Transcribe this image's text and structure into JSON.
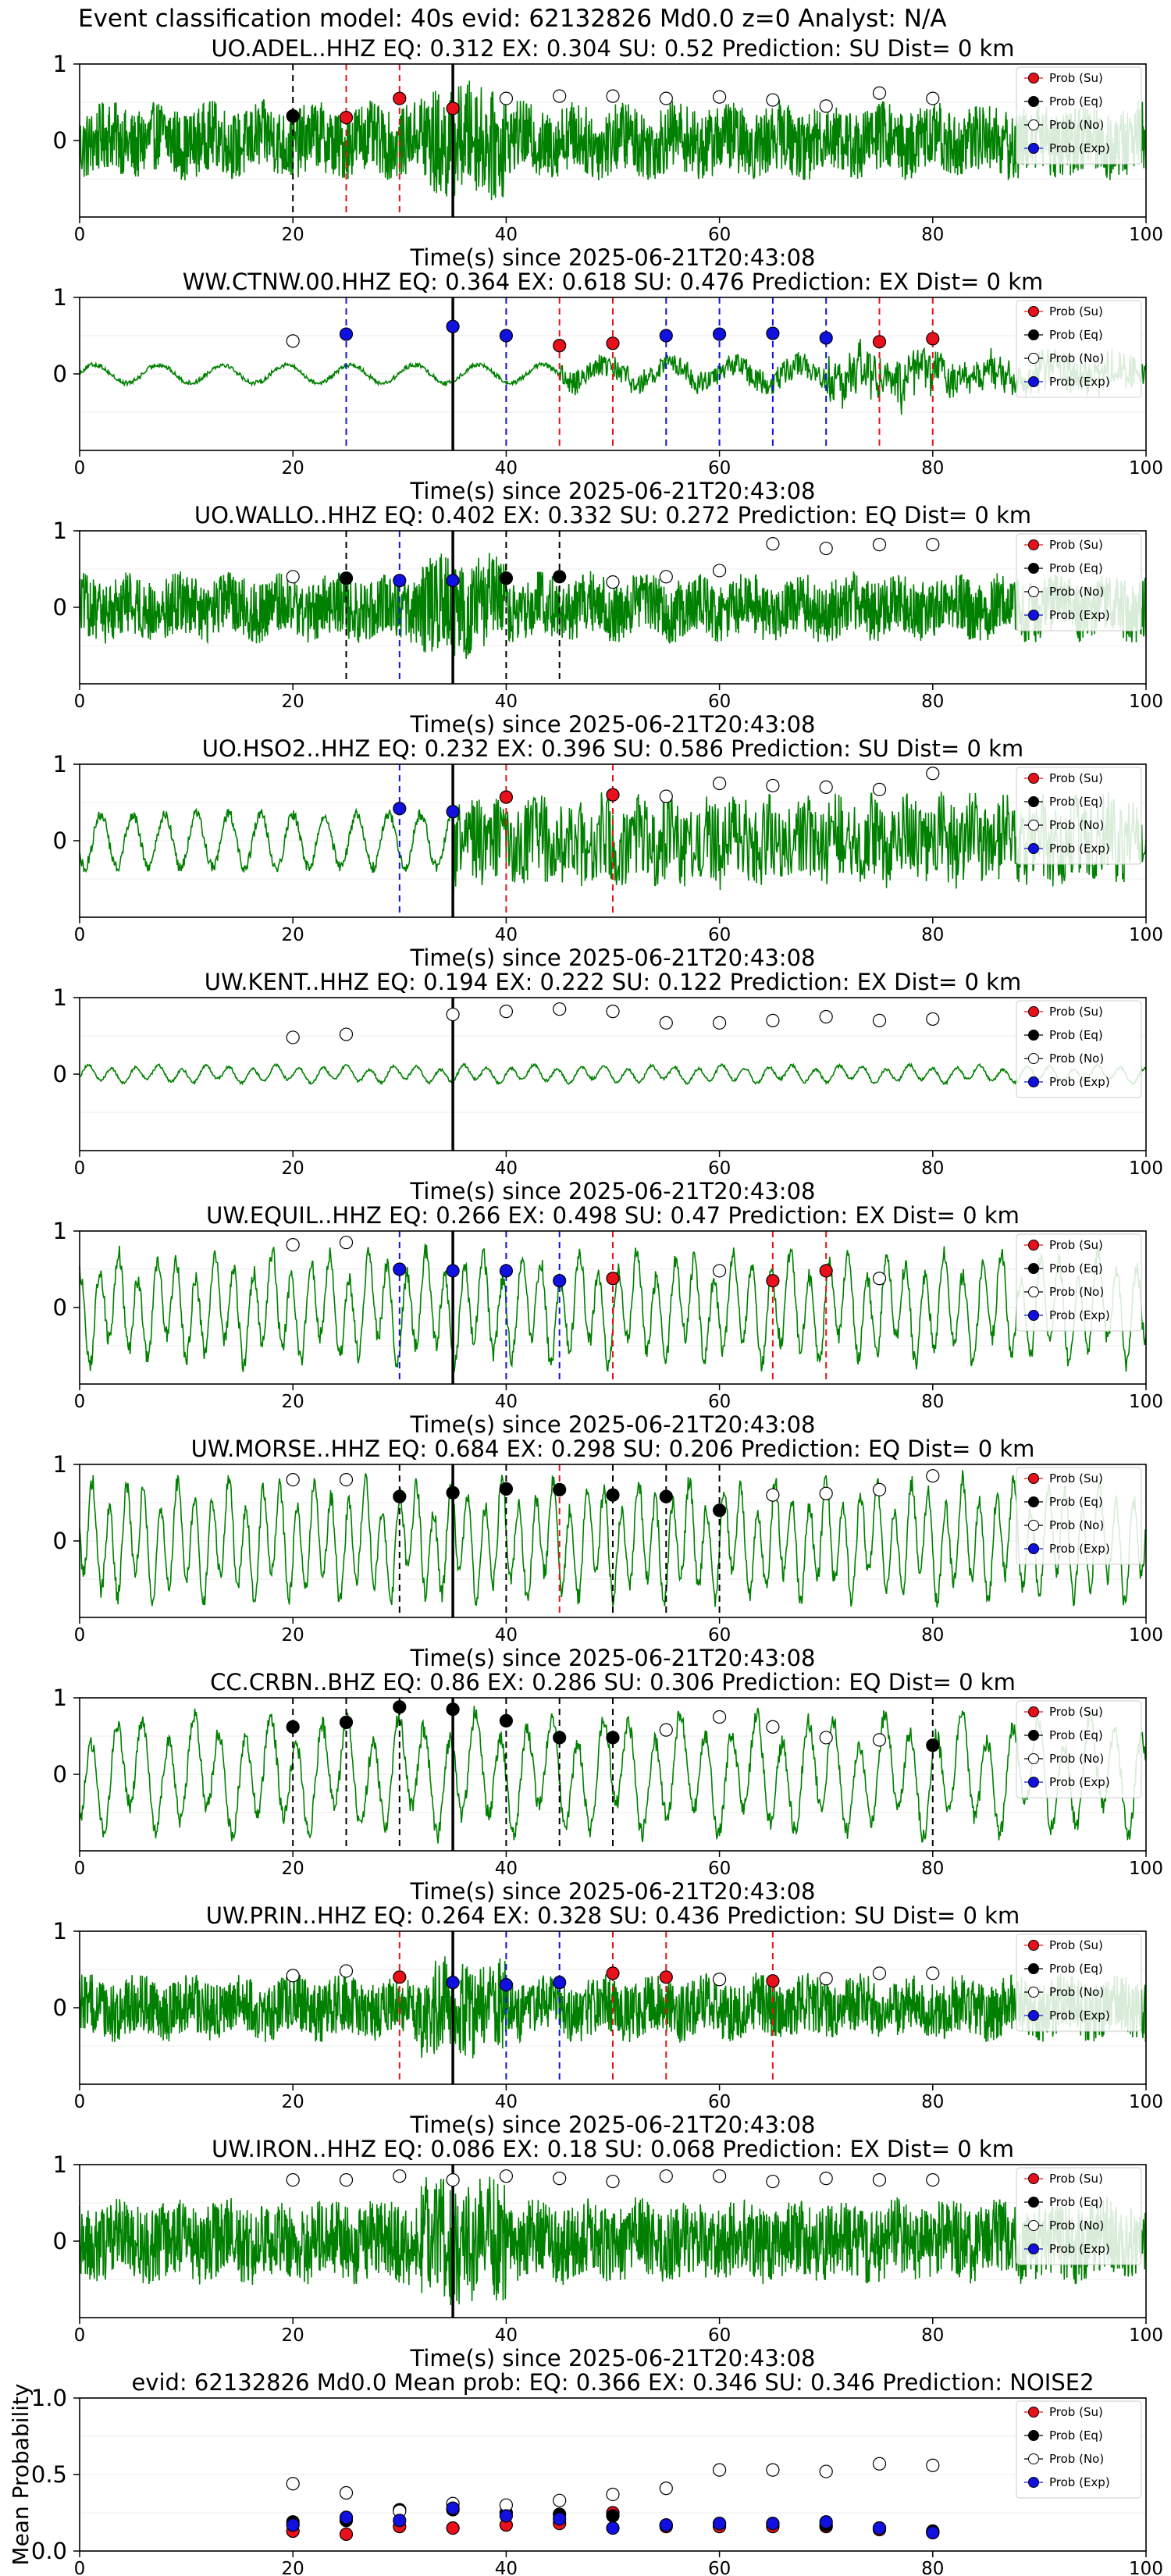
{
  "figure_title": "Event classification model: 40s evid: 62132826 Md0.0 z=0 Analyst: N/A",
  "xlabel": "Time(s) since 2025-06-21T20:43:08",
  "legend": [
    "Prob (Su)",
    "Prob (Eq)",
    "Prob (No)",
    "Prob (Exp)"
  ],
  "colors": {
    "su": "#e8101a",
    "eq": "#000000",
    "no": "#ffffff",
    "exp": "#1010e0",
    "waveform": "#008000",
    "pick": "#000000"
  },
  "x_ticks": [
    "0",
    "20",
    "40",
    "60",
    "80",
    "100"
  ],
  "y_ticks": [
    "0",
    "1"
  ],
  "mean_y_ticks": [
    "0.0",
    "0.5",
    "1.0"
  ],
  "mean_ylabel": "Mean Probability",
  "pick_time": 35,
  "chart_data": [
    {
      "type": "line",
      "station": "UO.ADEL..HHZ",
      "title": "UO.ADEL..HHZ   EQ: 0.312  EX: 0.304  SU: 0.52   Prediction: SU    Dist= 0 km",
      "xlim": [
        0,
        100
      ],
      "ylim": [
        -1,
        1
      ],
      "wave": {
        "style": "noise",
        "amp": 0.45,
        "period": 0
      },
      "times": [
        20,
        25,
        30,
        35,
        40,
        45,
        50,
        55,
        60,
        65,
        70,
        75,
        80
      ],
      "classes": [
        "eq",
        "su",
        "su",
        "su",
        "no",
        "no",
        "no",
        "no",
        "no",
        "no",
        "no",
        "no",
        "no"
      ],
      "values": [
        0.32,
        0.3,
        0.55,
        0.42,
        0.55,
        0.58,
        0.58,
        0.55,
        0.57,
        0.53,
        0.45,
        0.62,
        0.55
      ],
      "lines": [
        {
          "x": 20,
          "c": "eq"
        },
        {
          "x": 25,
          "c": "su"
        },
        {
          "x": 30,
          "c": "su"
        }
      ]
    },
    {
      "type": "line",
      "station": "WW.CTNW.00.HHZ",
      "title": "WW.CTNW.00.HHZ   EQ: 0.364  EX: 0.618  SU: 0.476   Prediction: EX    Dist= 0 km",
      "xlim": [
        0,
        100
      ],
      "ylim": [
        -1,
        1
      ],
      "wave": {
        "style": "ctnw",
        "amp": 0.12,
        "period": 6
      },
      "times": [
        20,
        25,
        35,
        40,
        45,
        50,
        55,
        60,
        65,
        70,
        75,
        80
      ],
      "classes": [
        "no",
        "exp",
        "exp",
        "exp",
        "su",
        "su",
        "exp",
        "exp",
        "exp",
        "exp",
        "su",
        "su"
      ],
      "values": [
        0.43,
        0.52,
        0.62,
        0.5,
        0.37,
        0.4,
        0.5,
        0.52,
        0.53,
        0.47,
        0.42,
        0.46
      ],
      "lines": [
        {
          "x": 25,
          "c": "exp"
        },
        {
          "x": 40,
          "c": "exp"
        },
        {
          "x": 45,
          "c": "su"
        },
        {
          "x": 50,
          "c": "su"
        },
        {
          "x": 55,
          "c": "exp"
        },
        {
          "x": 60,
          "c": "exp"
        },
        {
          "x": 65,
          "c": "exp"
        },
        {
          "x": 70,
          "c": "exp"
        },
        {
          "x": 75,
          "c": "su"
        },
        {
          "x": 80,
          "c": "su"
        }
      ]
    },
    {
      "type": "line",
      "station": "UO.WALLO..HHZ",
      "title": "UO.WALLO..HHZ   EQ: 0.402  EX: 0.332  SU: 0.272   Prediction: EQ    Dist= 0 km",
      "xlim": [
        0,
        100
      ],
      "ylim": [
        -1,
        1
      ],
      "wave": {
        "style": "noise",
        "amp": 0.4,
        "period": 0
      },
      "times": [
        20,
        25,
        30,
        35,
        40,
        45,
        50,
        55,
        60,
        65,
        70,
        75,
        80
      ],
      "classes": [
        "no",
        "eq",
        "exp",
        "exp",
        "eq",
        "eq",
        "no",
        "no",
        "no",
        "no",
        "no",
        "no",
        "no"
      ],
      "values": [
        0.4,
        0.38,
        0.35,
        0.35,
        0.38,
        0.4,
        0.33,
        0.4,
        0.48,
        0.83,
        0.77,
        0.82,
        0.82
      ],
      "lines": [
        {
          "x": 25,
          "c": "eq"
        },
        {
          "x": 30,
          "c": "exp"
        },
        {
          "x": 40,
          "c": "eq"
        },
        {
          "x": 45,
          "c": "eq"
        }
      ]
    },
    {
      "type": "line",
      "station": "UO.HSO2..HHZ",
      "title": "UO.HSO2..HHZ   EQ: 0.232  EX: 0.396  SU: 0.586   Prediction: SU    Dist= 0 km",
      "xlim": [
        0,
        100
      ],
      "ylim": [
        -1,
        1
      ],
      "wave": {
        "style": "hso2",
        "amp": 0.35,
        "period": 3
      },
      "times": [
        30,
        35,
        40,
        50,
        55,
        60,
        65,
        70,
        75,
        80
      ],
      "classes": [
        "exp",
        "exp",
        "su",
        "su",
        "no",
        "no",
        "no",
        "no",
        "no",
        "no"
      ],
      "values": [
        0.42,
        0.38,
        0.57,
        0.6,
        0.58,
        0.75,
        0.72,
        0.7,
        0.67,
        0.88
      ],
      "lines": [
        {
          "x": 30,
          "c": "exp"
        },
        {
          "x": 40,
          "c": "su"
        },
        {
          "x": 50,
          "c": "su"
        }
      ]
    },
    {
      "type": "line",
      "station": "UW.KENT..HHZ",
      "title": "UW.KENT..HHZ   EQ: 0.194  EX: 0.222  SU: 0.122   Prediction: EX    Dist= 0 km",
      "xlim": [
        0,
        100
      ],
      "ylim": [
        -1,
        1
      ],
      "wave": {
        "style": "smooth",
        "amp": 0.09,
        "period": 2.2
      },
      "times": [
        20,
        25,
        35,
        40,
        45,
        50,
        55,
        60,
        65,
        70,
        75,
        80
      ],
      "classes": [
        "no",
        "no",
        "no",
        "no",
        "no",
        "no",
        "no",
        "no",
        "no",
        "no",
        "no",
        "no"
      ],
      "values": [
        0.48,
        0.52,
        0.78,
        0.82,
        0.85,
        0.82,
        0.67,
        0.67,
        0.7,
        0.75,
        0.7,
        0.72
      ],
      "lines": []
    },
    {
      "type": "line",
      "station": "UW.EQUIL..HHZ",
      "title": "UW.EQUIL..HHZ   EQ: 0.266  EX: 0.498  SU: 0.47   Prediction: EX    Dist= 0 km",
      "xlim": [
        0,
        100
      ],
      "ylim": [
        -1,
        1
      ],
      "wave": {
        "style": "smooth",
        "amp": 0.55,
        "period": 1.8
      },
      "times": [
        20,
        25,
        30,
        35,
        40,
        45,
        50,
        60,
        65,
        70,
        75
      ],
      "classes": [
        "no",
        "no",
        "exp",
        "exp",
        "exp",
        "exp",
        "su",
        "no",
        "su",
        "su",
        "no"
      ],
      "values": [
        0.82,
        0.85,
        0.5,
        0.48,
        0.48,
        0.35,
        0.38,
        0.48,
        0.35,
        0.48,
        0.38
      ],
      "lines": [
        {
          "x": 30,
          "c": "exp"
        },
        {
          "x": 40,
          "c": "exp"
        },
        {
          "x": 45,
          "c": "exp"
        },
        {
          "x": 50,
          "c": "su"
        },
        {
          "x": 65,
          "c": "su"
        },
        {
          "x": 70,
          "c": "su"
        }
      ]
    },
    {
      "type": "line",
      "station": "UW.MORSE..HHZ",
      "title": "UW.MORSE..HHZ   EQ: 0.684  EX: 0.298  SU: 0.206   Prediction: EQ    Dist= 0 km",
      "xlim": [
        0,
        100
      ],
      "ylim": [
        -1,
        1
      ],
      "wave": {
        "style": "smooth",
        "amp": 0.6,
        "period": 1.6
      },
      "times": [
        20,
        25,
        30,
        35,
        40,
        45,
        50,
        55,
        60,
        65,
        70,
        75,
        80
      ],
      "classes": [
        "no",
        "no",
        "eq",
        "eq",
        "eq",
        "eq",
        "eq",
        "eq",
        "eq",
        "no",
        "no",
        "no",
        "no"
      ],
      "values": [
        0.8,
        0.8,
        0.58,
        0.63,
        0.68,
        0.67,
        0.6,
        0.58,
        0.4,
        0.6,
        0.62,
        0.67,
        0.85
      ],
      "lines": [
        {
          "x": 30,
          "c": "eq"
        },
        {
          "x": 40,
          "c": "eq"
        },
        {
          "x": 45,
          "c": "su"
        },
        {
          "x": 50,
          "c": "eq"
        },
        {
          "x": 55,
          "c": "eq"
        },
        {
          "x": 60,
          "c": "eq"
        }
      ]
    },
    {
      "type": "line",
      "station": "CC.CRBN..BHZ",
      "title": "CC.CRBN..BHZ   EQ: 0.86  EX: 0.286  SU: 0.306   Prediction: EQ    Dist= 0 km",
      "xlim": [
        0,
        100
      ],
      "ylim": [
        -1,
        1
      ],
      "wave": {
        "style": "smooth",
        "amp": 0.6,
        "period": 2.4
      },
      "times": [
        20,
        25,
        30,
        35,
        40,
        45,
        50,
        55,
        60,
        65,
        70,
        75,
        80
      ],
      "classes": [
        "eq",
        "eq",
        "eq",
        "eq",
        "eq",
        "eq",
        "eq",
        "no",
        "no",
        "no",
        "no",
        "no",
        "eq"
      ],
      "values": [
        0.62,
        0.68,
        0.88,
        0.85,
        0.7,
        0.48,
        0.48,
        0.58,
        0.75,
        0.62,
        0.48,
        0.45,
        0.38
      ],
      "lines": [
        {
          "x": 20,
          "c": "eq"
        },
        {
          "x": 25,
          "c": "eq"
        },
        {
          "x": 30,
          "c": "eq"
        },
        {
          "x": 40,
          "c": "eq"
        },
        {
          "x": 45,
          "c": "eq"
        },
        {
          "x": 50,
          "c": "eq"
        },
        {
          "x": 80,
          "c": "eq"
        }
      ]
    },
    {
      "type": "line",
      "station": "UW.PRIN..HHZ",
      "title": "UW.PRIN..HHZ   EQ: 0.264  EX: 0.328  SU: 0.436   Prediction: SU    Dist= 0 km",
      "xlim": [
        0,
        100
      ],
      "ylim": [
        -1,
        1
      ],
      "wave": {
        "style": "noise",
        "amp": 0.38,
        "period": 0
      },
      "times": [
        20,
        25,
        30,
        35,
        40,
        45,
        50,
        55,
        60,
        65,
        70,
        75,
        80
      ],
      "classes": [
        "no",
        "no",
        "su",
        "exp",
        "exp",
        "exp",
        "su",
        "su",
        "no",
        "su",
        "no",
        "no",
        "no"
      ],
      "values": [
        0.42,
        0.48,
        0.4,
        0.33,
        0.3,
        0.33,
        0.45,
        0.4,
        0.37,
        0.35,
        0.38,
        0.45,
        0.45
      ],
      "lines": [
        {
          "x": 30,
          "c": "su"
        },
        {
          "x": 40,
          "c": "exp"
        },
        {
          "x": 45,
          "c": "exp"
        },
        {
          "x": 50,
          "c": "su"
        },
        {
          "x": 55,
          "c": "su"
        },
        {
          "x": 65,
          "c": "su"
        }
      ]
    },
    {
      "type": "line",
      "station": "UW.IRON..HHZ",
      "title": "UW.IRON..HHZ   EQ: 0.086  EX: 0.18  SU: 0.068   Prediction: EX    Dist= 0 km",
      "xlim": [
        0,
        100
      ],
      "ylim": [
        -1,
        1
      ],
      "wave": {
        "style": "noise",
        "amp": 0.5,
        "period": 0
      },
      "times": [
        20,
        25,
        30,
        35,
        40,
        45,
        50,
        55,
        60,
        65,
        70,
        75,
        80
      ],
      "classes": [
        "no",
        "no",
        "no",
        "no",
        "no",
        "no",
        "no",
        "no",
        "no",
        "no",
        "no",
        "no",
        "no"
      ],
      "values": [
        0.8,
        0.8,
        0.85,
        0.8,
        0.85,
        0.82,
        0.78,
        0.85,
        0.85,
        0.78,
        0.82,
        0.8,
        0.8
      ],
      "lines": []
    },
    {
      "type": "scatter",
      "title": "evid: 62132826  Md0.0    Mean prob:   EQ: 0.366  EX: 0.346  SU: 0.346   Prediction: NOISE2",
      "ylabel": "Mean Probability",
      "xlim": [
        0,
        100
      ],
      "ylim": [
        0,
        1
      ],
      "times": [
        20,
        25,
        30,
        35,
        40,
        45,
        50,
        55,
        60,
        65,
        70,
        75,
        80
      ],
      "series": [
        {
          "name": "Prob (Su)",
          "cls": "su",
          "values": [
            0.13,
            0.11,
            0.16,
            0.15,
            0.17,
            0.18,
            0.25,
            0.16,
            0.16,
            0.16,
            0.16,
            0.14,
            0.12
          ]
        },
        {
          "name": "Prob (Eq)",
          "cls": "eq",
          "values": [
            0.19,
            0.2,
            0.27,
            0.27,
            0.25,
            0.24,
            0.23,
            0.17,
            0.18,
            0.18,
            0.17,
            0.15,
            0.13
          ]
        },
        {
          "name": "Prob (No)",
          "cls": "no",
          "values": [
            0.44,
            0.38,
            0.26,
            0.31,
            0.3,
            0.33,
            0.37,
            0.41,
            0.53,
            0.53,
            0.52,
            0.57,
            0.56
          ]
        },
        {
          "name": "Prob (Exp)",
          "cls": "exp",
          "values": [
            0.17,
            0.22,
            0.2,
            0.28,
            0.23,
            0.21,
            0.15,
            0.17,
            0.18,
            0.18,
            0.19,
            0.15,
            0.12
          ]
        }
      ]
    }
  ]
}
